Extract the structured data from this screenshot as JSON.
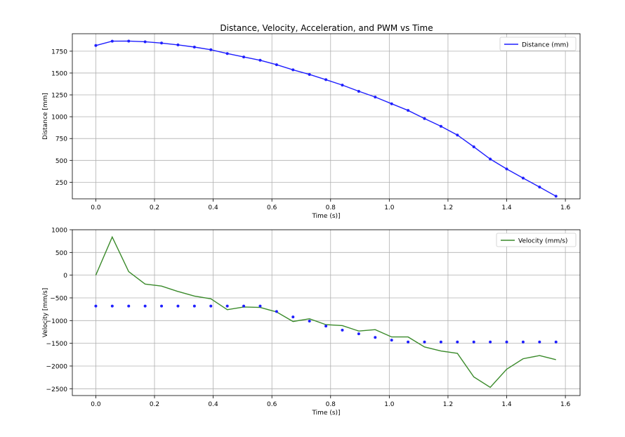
{
  "figure_title": "Distance, Velocity, Acceleration, and PWM vs Time",
  "chart_data": [
    {
      "type": "line",
      "xlabel": "Time (s)]",
      "ylabel": "Distance [mm]",
      "xlim": [
        -0.08,
        1.65
      ],
      "ylim": [
        60,
        1950
      ],
      "xticks": [
        0.0,
        0.2,
        0.4,
        0.6,
        0.8,
        1.0,
        1.2,
        1.4,
        1.6
      ],
      "xtick_labels": [
        "0.0",
        "0.2",
        "0.4",
        "0.6",
        "0.8",
        "1.0",
        "1.2",
        "1.4",
        "1.6"
      ],
      "yticks": [
        250,
        500,
        750,
        1000,
        1250,
        1500,
        1750
      ],
      "ytick_labels": [
        "250",
        "500",
        "750",
        "1000",
        "1250",
        "1500",
        "1750"
      ],
      "grid": true,
      "legend_position": "top-right",
      "series": [
        {
          "name": "Distance (mm)",
          "color": "#1f1fff",
          "markers": true,
          "x": [
            0.0,
            0.056,
            0.112,
            0.168,
            0.224,
            0.28,
            0.336,
            0.392,
            0.448,
            0.504,
            0.56,
            0.616,
            0.672,
            0.728,
            0.784,
            0.84,
            0.896,
            0.952,
            1.008,
            1.064,
            1.12,
            1.176,
            1.232,
            1.288,
            1.344,
            1.4,
            1.456,
            1.512,
            1.568
          ],
          "y": [
            1815,
            1865,
            1866,
            1858,
            1843,
            1822,
            1797,
            1767,
            1723,
            1684,
            1646,
            1595,
            1537,
            1484,
            1424,
            1362,
            1291,
            1225,
            1148,
            1072,
            979,
            890,
            790,
            655,
            515,
            402,
            297,
            195,
            90
          ]
        }
      ]
    },
    {
      "type": "line",
      "xlabel": "Time (s)]",
      "ylabel": "Velocity [mm/s]",
      "xlim": [
        -0.08,
        1.65
      ],
      "ylim": [
        -2650,
        1000
      ],
      "xticks": [
        0.0,
        0.2,
        0.4,
        0.6,
        0.8,
        1.0,
        1.2,
        1.4,
        1.6
      ],
      "xtick_labels": [
        "0.0",
        "0.2",
        "0.4",
        "0.6",
        "0.8",
        "1.0",
        "1.2",
        "1.4",
        "1.6"
      ],
      "yticks": [
        -2500,
        -2000,
        -1500,
        -1000,
        -500,
        0,
        500,
        1000
      ],
      "ytick_labels": [
        "−2500",
        "−2000",
        "−1500",
        "−1000",
        "−500",
        "0",
        "500",
        "1000"
      ],
      "grid": true,
      "legend_position": "top-right",
      "series": [
        {
          "name": "Velocity (mm/s)",
          "color": "#3a8a2a",
          "markers": false,
          "x": [
            0.0,
            0.056,
            0.112,
            0.168,
            0.224,
            0.28,
            0.336,
            0.392,
            0.448,
            0.504,
            0.56,
            0.616,
            0.672,
            0.728,
            0.784,
            0.84,
            0.896,
            0.952,
            1.008,
            1.064,
            1.12,
            1.176,
            1.232,
            1.288,
            1.344,
            1.4,
            1.456,
            1.512,
            1.568
          ],
          "y": [
            0,
            840,
            80,
            -195,
            -240,
            -360,
            -460,
            -520,
            -760,
            -700,
            -710,
            -810,
            -1020,
            -960,
            -1090,
            -1110,
            -1230,
            -1200,
            -1360,
            -1360,
            -1580,
            -1670,
            -1720,
            -2240,
            -2470,
            -2070,
            -1840,
            -1770,
            -1860
          ]
        },
        {
          "color": "#1f1fff",
          "markers": true,
          "line": false,
          "x": [
            0.0,
            0.056,
            0.112,
            0.168,
            0.224,
            0.28,
            0.336,
            0.392,
            0.448,
            0.504,
            0.56,
            0.616,
            0.672,
            0.728,
            0.784,
            0.84,
            0.896,
            0.952,
            1.008,
            1.064,
            1.12,
            1.176,
            1.232,
            1.288,
            1.344,
            1.4,
            1.456,
            1.512,
            1.568
          ],
          "y": [
            -680,
            -680,
            -680,
            -680,
            -680,
            -680,
            -680,
            -680,
            -680,
            -680,
            -680,
            -800,
            -920,
            -1010,
            -1120,
            -1210,
            -1290,
            -1370,
            -1430,
            -1470,
            -1470,
            -1470,
            -1470,
            -1470,
            -1470,
            -1470,
            -1470,
            -1470,
            -1470
          ]
        }
      ]
    }
  ]
}
